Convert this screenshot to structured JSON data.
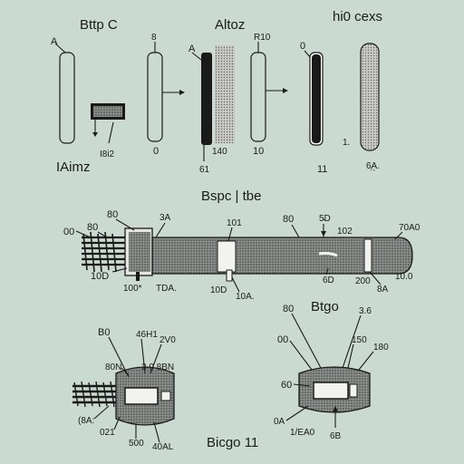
{
  "titles": {
    "top_left": "Bttp C",
    "top_center": "Altoz",
    "top_right": "hi0 cexs",
    "mid_center": "Bspc | tbe",
    "bottom_right": "Btgo",
    "bottom_center": "Bicgo 11"
  },
  "top_labels": {
    "a1": "A",
    "bottom_left": "IAimz",
    "small_label_1": "I8i2",
    "label_2a": "8",
    "zero_1": "0",
    "a2": "A",
    "lbl_140": "140",
    "lbl_61": "61",
    "lbl_r10": "R10",
    "lbl_10": "10",
    "zero_2": "0",
    "lbl_1": "1.",
    "lbl_11": "11",
    "lbl_ss": "6̩A̩."
  },
  "mid_labels": {
    "l_00": "00",
    "l_80a": "80",
    "l_80b": "80",
    "l_3a": "3A",
    "l_101": "101",
    "l_10d": "10D",
    "l_100": "100*",
    "l_tda": "TDA.",
    "l_10da": "10D",
    "l_10a": "10A.",
    "l_80c": "80",
    "l_6d": "6D",
    "l_5d": "5̵D",
    "l_102": "102",
    "l_8d": "8A",
    "l_200": "200",
    "l_70a": "70A0",
    "l_100b": "10.0"
  },
  "bottom_left_labels": {
    "b0": "B0",
    "l_4611": "46H1",
    "l_2v0": "2V0",
    "l_80n": "80N",
    "l_80n2": "3 0 8BN",
    "l_8a": "(8A:",
    "l_021": "021",
    "l_500": "500",
    "l_40al": "40AL"
  },
  "bottom_right_labels": {
    "l_80": "80",
    "l_00": "00",
    "l_36": "3.6",
    "l_150": "150",
    "l_180": "180",
    "l_60": "60",
    "l_0a": "0A",
    "l_1ea0": "1/EA0",
    "l_6b": "6B"
  }
}
